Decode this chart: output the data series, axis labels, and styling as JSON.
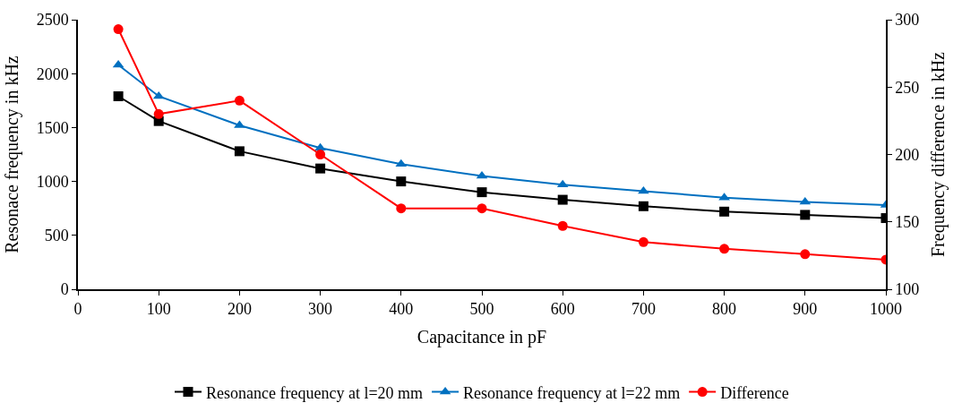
{
  "chart_data": {
    "type": "line",
    "xlabel": "Capacitance in pF",
    "ylabel": "Resonace frequency in kHz",
    "y2label": "Frequency difference in kHz",
    "x": [
      50,
      100,
      200,
      300,
      400,
      500,
      600,
      700,
      800,
      900,
      1000
    ],
    "xlim": [
      0,
      1000
    ],
    "xticks": [
      0,
      100,
      200,
      300,
      400,
      500,
      600,
      700,
      800,
      900,
      1000
    ],
    "ylim": [
      0,
      2500
    ],
    "yticks": [
      0,
      500,
      1000,
      1500,
      2000,
      2500
    ],
    "y2lim": [
      100,
      300
    ],
    "y2ticks": [
      100,
      150,
      200,
      250,
      300
    ],
    "legend": "bottom",
    "series": [
      {
        "name": "Resonance frequency at l=20 mm",
        "color": "#000000",
        "marker": "square",
        "values": [
          1790,
          1560,
          1280,
          1120,
          1000,
          900,
          830,
          770,
          720,
          690,
          660
        ]
      },
      {
        "name": "Resonance frequency at l=22 mm",
        "color": "#0070c0",
        "marker": "triangle",
        "values": [
          2080,
          1790,
          1520,
          1310,
          1160,
          1050,
          970,
          910,
          850,
          810,
          780
        ]
      },
      {
        "name": "Difference",
        "color": "#ff0000",
        "marker": "circle",
        "axis": "y2",
        "values": [
          293,
          230,
          240,
          200,
          160,
          160,
          147,
          135,
          130,
          126,
          122
        ]
      }
    ]
  }
}
